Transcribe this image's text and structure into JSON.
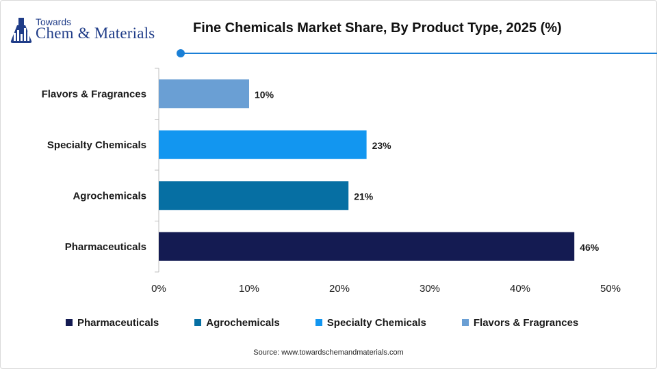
{
  "brand": {
    "top": "Towards",
    "main": "Chem & Materials"
  },
  "colors": {
    "brand_blue": "#1f3c88",
    "accent": "#1a7fd6"
  },
  "chart_data": {
    "type": "bar",
    "orientation": "horizontal",
    "title": "Fine Chemicals Market Share, By Product Type, 2025 (%)",
    "categories": [
      "Flavors & Fragrances",
      "Specialty Chemicals",
      "Agrochemicals",
      "Pharmaceuticals"
    ],
    "values": [
      10,
      23,
      21,
      46
    ],
    "value_labels": [
      "10%",
      "23%",
      "21%",
      "46%"
    ],
    "colors": [
      "#6a9fd4",
      "#1296f0",
      "#066fa3",
      "#141b52"
    ],
    "xlim": [
      0,
      50
    ],
    "x_ticks": [
      0,
      10,
      20,
      30,
      40,
      50
    ],
    "x_tick_labels": [
      "0%",
      "10%",
      "20%",
      "30%",
      "40%",
      "50%"
    ],
    "grid": false,
    "legend_position": "bottom",
    "legend": [
      {
        "label": "Pharmaceuticals",
        "color": "#141b52"
      },
      {
        "label": "Agrochemicals",
        "color": "#066fa3"
      },
      {
        "label": "Specialty Chemicals",
        "color": "#1296f0"
      },
      {
        "label": "Flavors & Fragrances",
        "color": "#6a9fd4"
      }
    ]
  },
  "source": "Source:  www.towardschemandmaterials.com"
}
